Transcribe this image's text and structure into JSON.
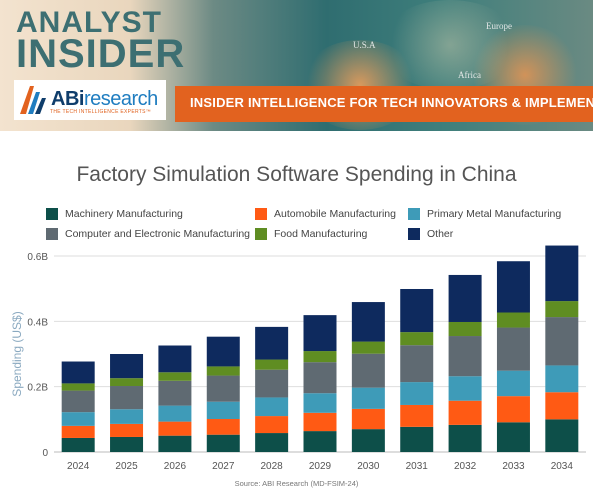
{
  "banner": {
    "brand_line1": "ANALYST",
    "brand_line2": "INSIDER",
    "logo_name_ab": "ABi",
    "logo_name_rest": "research",
    "logo_tagline": "THE TECH INTELLIGENCE EXPERTS™",
    "tagline": "INSIDER INTELLIGENCE FOR TECH INNOVATORS & IMPLEMENTERS",
    "map_labels": [
      "U.S.A",
      "Europe",
      "Africa"
    ],
    "colors": {
      "accent": "#e2621f",
      "brand_teal": "#3d6f72",
      "logo_blue": "#1f7dc0"
    }
  },
  "chart_data": {
    "type": "bar",
    "stacked": true,
    "title": "Factory Simulation Software Spending in China",
    "xlabel": "",
    "ylabel": "Spending (US$)",
    "ylim": [
      0,
      0.6
    ],
    "yticks": [
      0,
      0.2,
      0.4,
      0.6
    ],
    "ytick_labels": [
      "0",
      "0.2B",
      "0.4B",
      "0.6B"
    ],
    "grid": true,
    "legend_position": "top",
    "categories": [
      "2024",
      "2025",
      "2026",
      "2027",
      "2028",
      "2029",
      "2030",
      "2031",
      "2032",
      "2033",
      "2034"
    ],
    "series": [
      {
        "name": "Machinery Manufacturing",
        "color": "#0d4f49",
        "values": [
          0.043,
          0.046,
          0.05,
          0.053,
          0.058,
          0.064,
          0.07,
          0.077,
          0.083,
          0.091,
          0.1
        ]
      },
      {
        "name": "Automobile Manufacturing",
        "color": "#ff5a14",
        "values": [
          0.037,
          0.04,
          0.043,
          0.048,
          0.052,
          0.056,
          0.062,
          0.067,
          0.074,
          0.08,
          0.083
        ]
      },
      {
        "name": "Primary Metal Manufacturing",
        "color": "#3e9bb8",
        "values": [
          0.042,
          0.045,
          0.049,
          0.053,
          0.057,
          0.06,
          0.065,
          0.07,
          0.075,
          0.078,
          0.082
        ]
      },
      {
        "name": "Computer and Electronic Manufacturing",
        "color": "#5f6a72",
        "values": [
          0.066,
          0.071,
          0.076,
          0.08,
          0.085,
          0.095,
          0.104,
          0.113,
          0.123,
          0.132,
          0.148
        ]
      },
      {
        "name": "Food Manufacturing",
        "color": "#5f8d22",
        "values": [
          0.022,
          0.024,
          0.026,
          0.028,
          0.031,
          0.034,
          0.037,
          0.04,
          0.043,
          0.046,
          0.049
        ]
      },
      {
        "name": "Other",
        "color": "#0e2a5e",
        "values": [
          0.067,
          0.074,
          0.082,
          0.091,
          0.1,
          0.11,
          0.121,
          0.132,
          0.144,
          0.157,
          0.17
        ]
      }
    ]
  },
  "legend_order": [
    "Machinery Manufacturing",
    "Automobile Manufacturing",
    "Primary Metal Manufacturing",
    "Computer and Electronic Manufacturing",
    "Food Manufacturing",
    "Other"
  ],
  "source": "Source: ABI Research (MD-FSIM-24)"
}
